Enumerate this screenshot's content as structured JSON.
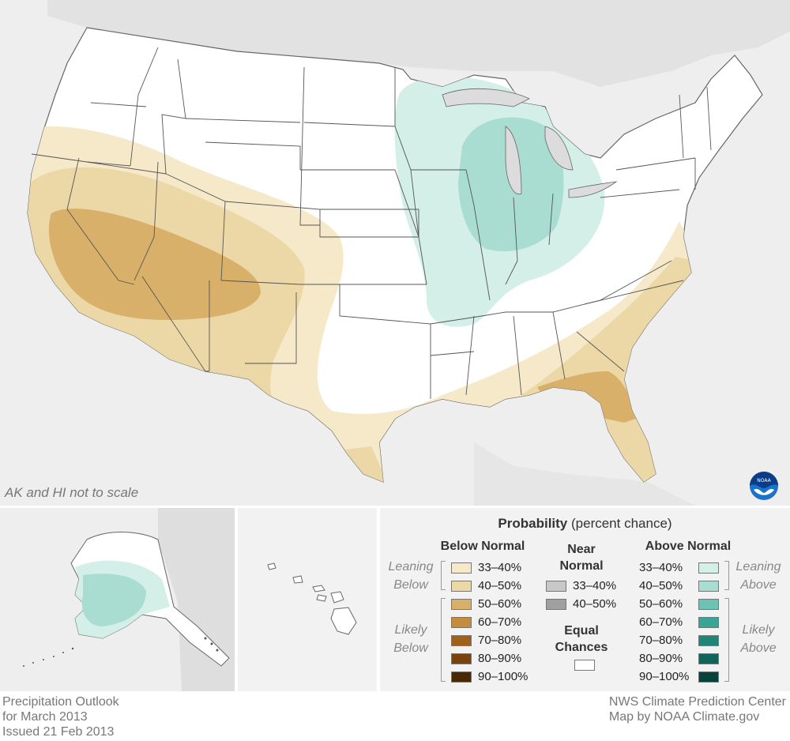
{
  "map": {
    "scale_note": "AK and HI not to scale",
    "colors": {
      "land_bg": "#eeeeee",
      "us_land": "#ffffff",
      "state_border": "#555555",
      "below_33_40": "#f6e9c9",
      "below_40_50": "#ecd7a6",
      "below_50_60": "#d8b06a",
      "above_33_40": "#d4eee8",
      "above_40_50": "#a9ddd2"
    },
    "logo": "noaa-logo"
  },
  "legend": {
    "title_bold": "Probability",
    "title_rest": "(percent chance)",
    "below": {
      "heading": "Below Normal",
      "items": [
        {
          "label": "33–40%",
          "color": "#f6e9c9"
        },
        {
          "label": "40–50%",
          "color": "#ecd7a6"
        },
        {
          "label": "50–60%",
          "color": "#d8b06a"
        },
        {
          "label": "60–70%",
          "color": "#c48c3c"
        },
        {
          "label": "70–80%",
          "color": "#a0601c"
        },
        {
          "label": "80–90%",
          "color": "#7a420c"
        },
        {
          "label": "90–100%",
          "color": "#4a2806"
        }
      ],
      "leaning": [
        "Leaning",
        "Below"
      ],
      "likely": [
        "Likely",
        "Below"
      ]
    },
    "near": {
      "heading_1": "Near",
      "heading_2": "Normal",
      "items": [
        {
          "label": "33–40%",
          "color": "#c8c8c8"
        },
        {
          "label": "40–50%",
          "color": "#a0a0a0"
        }
      ]
    },
    "equal": {
      "heading_1": "Equal",
      "heading_2": "Chances",
      "color": "#ffffff"
    },
    "above": {
      "heading": "Above Normal",
      "items": [
        {
          "label": "33–40%",
          "color": "#d4eee8"
        },
        {
          "label": "40–50%",
          "color": "#a9ddd2"
        },
        {
          "label": "50–60%",
          "color": "#6cc3b4"
        },
        {
          "label": "60–70%",
          "color": "#3aa596"
        },
        {
          "label": "70–80%",
          "color": "#1e8577"
        },
        {
          "label": "80–90%",
          "color": "#0f6658"
        },
        {
          "label": "90–100%",
          "color": "#06433a"
        }
      ],
      "leaning": [
        "Leaning",
        "Above"
      ],
      "likely": [
        "Likely",
        "Above"
      ]
    }
  },
  "footer": {
    "left_1": "Precipitation Outlook",
    "left_2": "for March 2013",
    "left_3": "Issued 21 Feb 2013",
    "right_1": "NWS Climate Prediction Center",
    "right_2": "Map by NOAA Climate.gov"
  }
}
